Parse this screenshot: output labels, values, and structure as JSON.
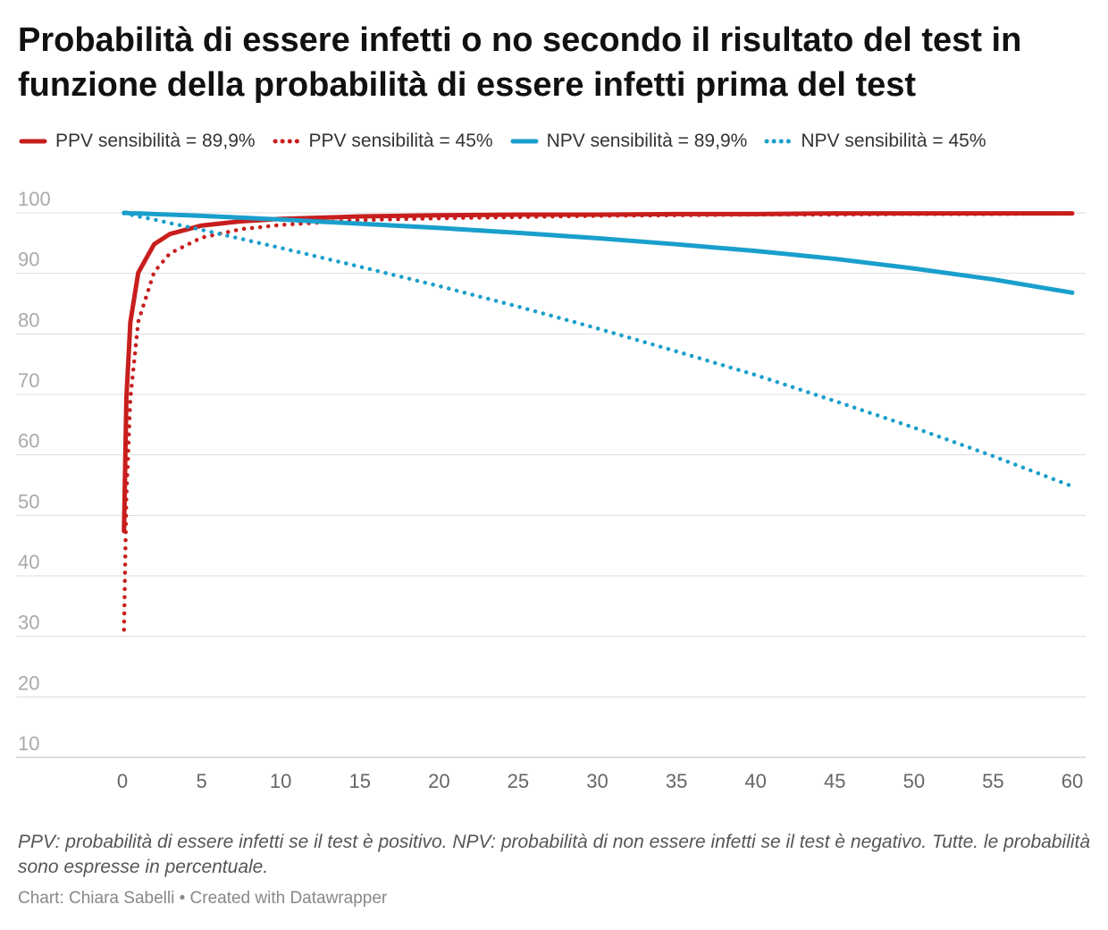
{
  "chart_data": {
    "type": "line",
    "title": "Probabilità di essere infetti o no secondo il risultato del test in funzione della probabilità di essere infetti prima del test",
    "x": [
      0.1,
      0.25,
      0.5,
      1,
      2,
      3,
      5,
      7.5,
      10,
      15,
      20,
      25,
      30,
      35,
      40,
      45,
      50,
      55,
      60
    ],
    "series": [
      {
        "name": "PPV sensibilità = 89,9%",
        "color": "#c71e1d",
        "style": "solid",
        "values": [
          47.4,
          69.3,
          81.9,
          90.1,
          94.8,
          96.5,
          97.9,
          98.6,
          99.0,
          99.4,
          99.6,
          99.7,
          99.7,
          99.8,
          99.8,
          99.9,
          99.9,
          99.9,
          99.9
        ]
      },
      {
        "name": "PPV sensibilità = 45%",
        "color": "#c71e1d",
        "style": "dotted",
        "values": [
          31.1,
          53.0,
          69.3,
          82.0,
          90.2,
          93.3,
          95.9,
          97.3,
          98.0,
          98.8,
          99.1,
          99.3,
          99.5,
          99.6,
          99.7,
          99.7,
          99.8,
          99.8,
          99.9
        ]
      },
      {
        "name": "NPV sensibilità = 89,9%",
        "color": "#1a9fcc",
        "style": "solid",
        "values": [
          100.0,
          100.0,
          99.9,
          99.9,
          99.8,
          99.7,
          99.5,
          99.2,
          98.9,
          98.2,
          97.5,
          96.7,
          95.8,
          94.8,
          93.7,
          92.4,
          90.8,
          89.0,
          86.8
        ]
      },
      {
        "name": "NPV sensibilità = 45%",
        "color": "#1a9fcc",
        "style": "dotted",
        "values": [
          99.9,
          99.9,
          99.7,
          99.4,
          98.9,
          98.3,
          97.2,
          95.7,
          94.2,
          91.1,
          87.9,
          84.5,
          80.9,
          77.1,
          73.2,
          68.9,
          64.5,
          59.8,
          54.8
        ]
      }
    ],
    "xlim": [
      0,
      60
    ],
    "xticks": [
      0,
      5,
      10,
      15,
      20,
      25,
      30,
      35,
      40,
      45,
      50,
      55,
      60
    ],
    "ylim": [
      10,
      100
    ],
    "yticks": [
      10,
      20,
      30,
      40,
      50,
      60,
      70,
      80,
      90,
      100
    ],
    "grid": true,
    "legend": "top",
    "notes": "PPV: probabilità di essere infetti se il test è positivo. NPV: probabilità di non essere infetti se il test è negativo. Tutte. le probabilità sono espresse in percentuale.",
    "source": "Chart: Chiara Sabelli • Created with Datawrapper"
  }
}
